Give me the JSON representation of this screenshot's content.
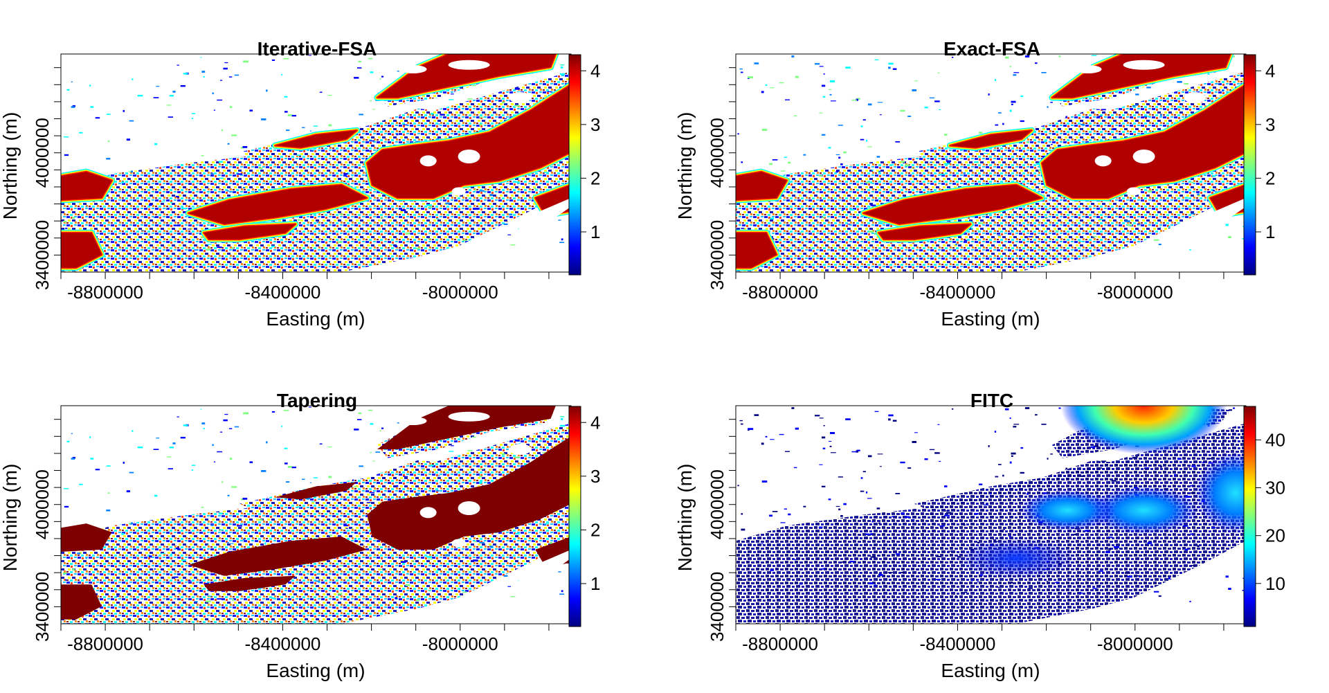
{
  "colorscale": {
    "jet": [
      "#00007f",
      "#0000ff",
      "#007fff",
      "#00ffff",
      "#7fff7f",
      "#ffff00",
      "#ff7f00",
      "#ff0000",
      "#7f0000"
    ]
  },
  "chart_data": [
    {
      "type": "heatmap",
      "title": "Iterative-FSA",
      "xlabel": "Easting (m)",
      "ylabel": "Northing (m)",
      "x_ticks": [
        -8800000,
        -8400000,
        -8000000
      ],
      "x_tick_labels": [
        "-8800000",
        "-8400000",
        "-8000000"
      ],
      "y_ticks": [
        3400000,
        4000000
      ],
      "y_tick_labels": [
        "3400000",
        "4000000"
      ],
      "colorbar": {
        "ticks": [
          1,
          2,
          3,
          4
        ],
        "tick_labels": [
          "1",
          "2",
          "3",
          "4"
        ],
        "range": [
          0.2,
          4.3
        ],
        "palette": "jet"
      },
      "saturated": false,
      "dark_regions": true
    },
    {
      "type": "heatmap",
      "title": "Exact-FSA",
      "xlabel": "Easting (m)",
      "ylabel": "Northing (m)",
      "x_ticks": [
        -8800000,
        -8400000,
        -8000000
      ],
      "x_tick_labels": [
        "-8800000",
        "-8400000",
        "-8000000"
      ],
      "y_ticks": [
        3400000,
        4000000
      ],
      "y_tick_labels": [
        "3400000",
        "4000000"
      ],
      "colorbar": {
        "ticks": [
          1,
          2,
          3,
          4
        ],
        "tick_labels": [
          "1",
          "2",
          "3",
          "4"
        ],
        "range": [
          0.2,
          4.3
        ],
        "palette": "jet"
      },
      "saturated": false,
      "dark_regions": true
    },
    {
      "type": "heatmap",
      "title": "Tapering",
      "xlabel": "Easting (m)",
      "ylabel": "Northing (m)",
      "x_ticks": [
        -8800000,
        -8400000,
        -8000000
      ],
      "x_tick_labels": [
        "-8800000",
        "-8400000",
        "-8000000"
      ],
      "y_ticks": [
        3400000,
        4000000
      ],
      "y_tick_labels": [
        "3400000",
        "4000000"
      ],
      "colorbar": {
        "ticks": [
          1,
          2,
          3,
          4
        ],
        "tick_labels": [
          "1",
          "2",
          "3",
          "4"
        ],
        "range": [
          0.2,
          4.3
        ],
        "palette": "jet"
      },
      "saturated": true,
      "dark_regions": true
    },
    {
      "type": "heatmap",
      "title": "FITC",
      "xlabel": "Easting (m)",
      "ylabel": "Northing (m)",
      "x_ticks": [
        -8800000,
        -8400000,
        -8000000
      ],
      "x_tick_labels": [
        "-8800000",
        "-8400000",
        "-8000000"
      ],
      "y_ticks": [
        3400000,
        4000000
      ],
      "y_tick_labels": [
        "3400000",
        "4000000"
      ],
      "colorbar": {
        "ticks": [
          10,
          20,
          30,
          40
        ],
        "tick_labels": [
          "10",
          "20",
          "30",
          "40"
        ],
        "range": [
          1,
          47
        ],
        "palette": "jet"
      },
      "saturated": false,
      "dark_regions": false
    }
  ]
}
